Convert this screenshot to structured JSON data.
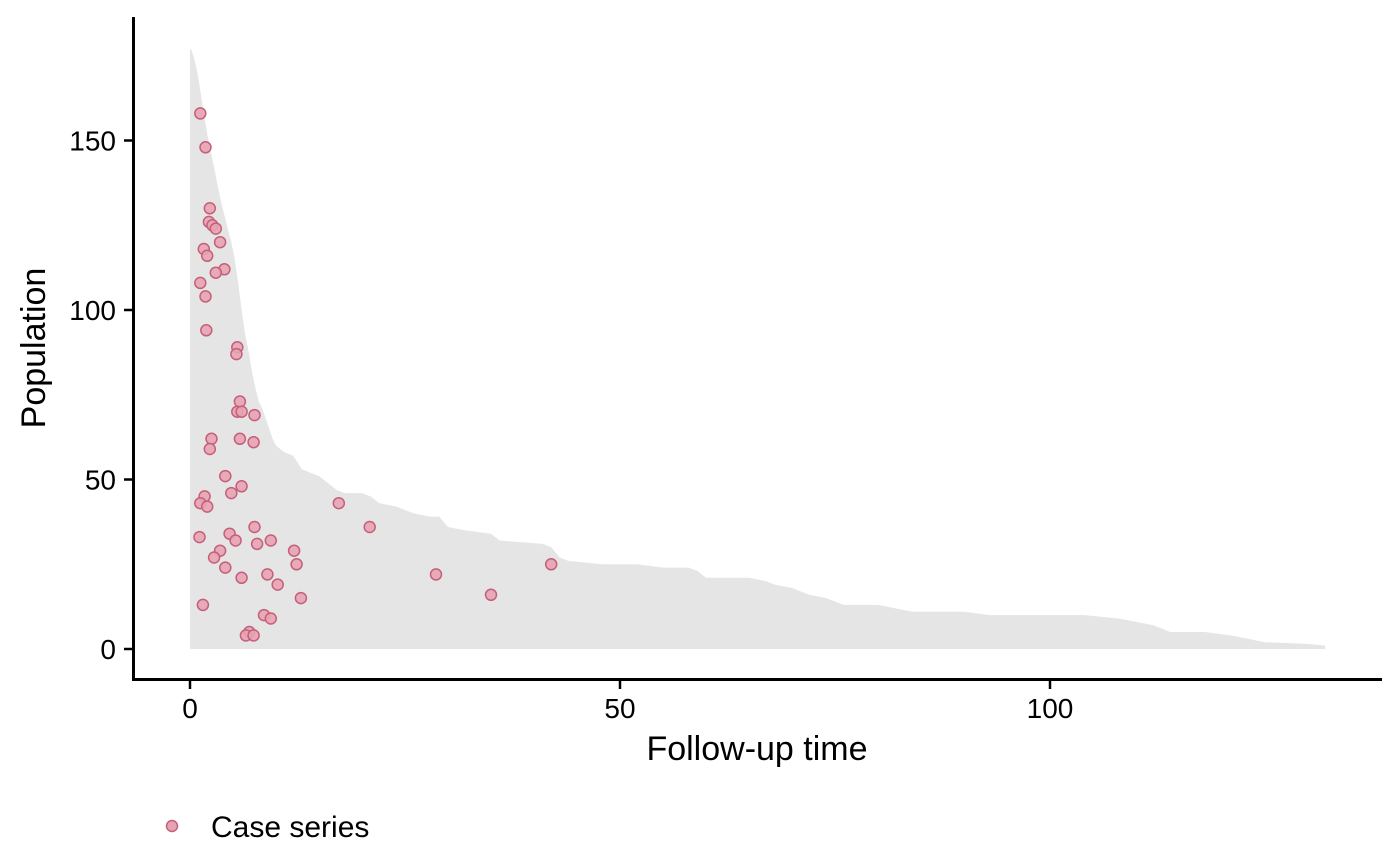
{
  "chart_data": {
    "type": "scatter",
    "title": "",
    "xlabel": "Follow-up time",
    "ylabel": "Population",
    "xlim": [
      -6.5,
      139
    ],
    "ylim": [
      -8.5,
      186
    ],
    "x_ticks": [
      0,
      50,
      100
    ],
    "y_ticks": [
      0,
      50,
      100,
      150
    ],
    "grid": false,
    "legend_position": "bottom-left",
    "legend": [
      "Case series"
    ],
    "colors": {
      "area_fill": "#e5e5e5",
      "point_fill": "#e8a3b2",
      "point_stroke": "#c4607a",
      "axis": "#000000"
    },
    "population_area": [
      [
        0.1,
        177
      ],
      [
        0.4,
        175
      ],
      [
        0.7,
        172
      ],
      [
        1.0,
        168
      ],
      [
        1.3,
        163
      ],
      [
        1.6,
        158
      ],
      [
        2.0,
        152
      ],
      [
        2.4,
        147
      ],
      [
        2.8,
        142
      ],
      [
        3.2,
        137
      ],
      [
        3.6,
        132
      ],
      [
        4.0,
        128
      ],
      [
        4.4,
        124
      ],
      [
        4.8,
        120
      ],
      [
        5.2,
        115
      ],
      [
        5.6,
        108
      ],
      [
        6.0,
        100
      ],
      [
        6.4,
        93
      ],
      [
        6.8,
        88
      ],
      [
        7.2,
        82
      ],
      [
        7.6,
        77
      ],
      [
        8.0,
        73
      ],
      [
        8.4,
        71
      ],
      [
        8.8,
        68
      ],
      [
        9.2,
        65
      ],
      [
        9.6,
        62
      ],
      [
        10.0,
        60
      ],
      [
        10.5,
        59
      ],
      [
        11.0,
        58
      ],
      [
        12.0,
        57
      ],
      [
        12.5,
        55
      ],
      [
        13.0,
        53
      ],
      [
        14.0,
        52
      ],
      [
        15.0,
        51
      ],
      [
        16.0,
        49
      ],
      [
        17.0,
        47
      ],
      [
        18.0,
        46
      ],
      [
        20.0,
        46
      ],
      [
        21.0,
        45
      ],
      [
        22.0,
        43
      ],
      [
        24.0,
        42
      ],
      [
        26.0,
        40
      ],
      [
        28.0,
        39
      ],
      [
        29.0,
        39
      ],
      [
        30.0,
        36
      ],
      [
        32.0,
        35
      ],
      [
        35.0,
        34
      ],
      [
        36.0,
        32
      ],
      [
        41.0,
        31
      ],
      [
        42.0,
        30
      ],
      [
        43.0,
        27
      ],
      [
        44.0,
        26
      ],
      [
        48.0,
        25
      ],
      [
        52.0,
        25
      ],
      [
        55.0,
        24
      ],
      [
        58.0,
        24
      ],
      [
        59.0,
        23
      ],
      [
        60.0,
        21
      ],
      [
        65.0,
        21
      ],
      [
        67.0,
        20
      ],
      [
        68.0,
        19
      ],
      [
        70.0,
        18
      ],
      [
        72.0,
        16
      ],
      [
        74.0,
        15
      ],
      [
        76.0,
        13
      ],
      [
        80.0,
        13
      ],
      [
        82.0,
        12
      ],
      [
        84.0,
        11
      ],
      [
        90.0,
        11
      ],
      [
        93.0,
        10
      ],
      [
        100.0,
        10
      ],
      [
        104.0,
        10
      ],
      [
        108.0,
        9
      ],
      [
        110.0,
        8
      ],
      [
        112.0,
        7
      ],
      [
        114.0,
        5
      ],
      [
        118.0,
        5
      ],
      [
        121.0,
        4
      ],
      [
        123.0,
        3
      ],
      [
        125.0,
        2
      ],
      [
        130.0,
        1.5
      ],
      [
        132.0,
        1
      ]
    ],
    "series": [
      {
        "name": "Case series",
        "points": [
          [
            1.2,
            158
          ],
          [
            1.8,
            148
          ],
          [
            2.3,
            130
          ],
          [
            2.2,
            126
          ],
          [
            2.6,
            125
          ],
          [
            3.0,
            124
          ],
          [
            1.6,
            118
          ],
          [
            3.5,
            120
          ],
          [
            2.0,
            116
          ],
          [
            4.0,
            112
          ],
          [
            3.0,
            111
          ],
          [
            1.2,
            108
          ],
          [
            1.8,
            104
          ],
          [
            1.9,
            94
          ],
          [
            5.5,
            89
          ],
          [
            5.4,
            87
          ],
          [
            5.8,
            73
          ],
          [
            5.5,
            70
          ],
          [
            6.0,
            70
          ],
          [
            7.5,
            69
          ],
          [
            2.5,
            62
          ],
          [
            5.8,
            62
          ],
          [
            7.4,
            61
          ],
          [
            2.3,
            59
          ],
          [
            4.1,
            51
          ],
          [
            6.0,
            48
          ],
          [
            1.7,
            45
          ],
          [
            4.8,
            46
          ],
          [
            1.2,
            43
          ],
          [
            2.0,
            42
          ],
          [
            17.3,
            43
          ],
          [
            20.9,
            36
          ],
          [
            7.5,
            36
          ],
          [
            4.6,
            34
          ],
          [
            5.3,
            32
          ],
          [
            9.4,
            32
          ],
          [
            1.1,
            33
          ],
          [
            7.8,
            31
          ],
          [
            3.5,
            29
          ],
          [
            12.1,
            29
          ],
          [
            2.8,
            27
          ],
          [
            12.4,
            25
          ],
          [
            42.0,
            25
          ],
          [
            4.1,
            24
          ],
          [
            9.0,
            22
          ],
          [
            28.6,
            22
          ],
          [
            6.0,
            21
          ],
          [
            10.2,
            19
          ],
          [
            35.0,
            16
          ],
          [
            12.9,
            15
          ],
          [
            1.5,
            13
          ],
          [
            8.6,
            10
          ],
          [
            9.4,
            9
          ],
          [
            6.9,
            5
          ],
          [
            6.5,
            4
          ],
          [
            7.4,
            4
          ]
        ]
      }
    ]
  }
}
